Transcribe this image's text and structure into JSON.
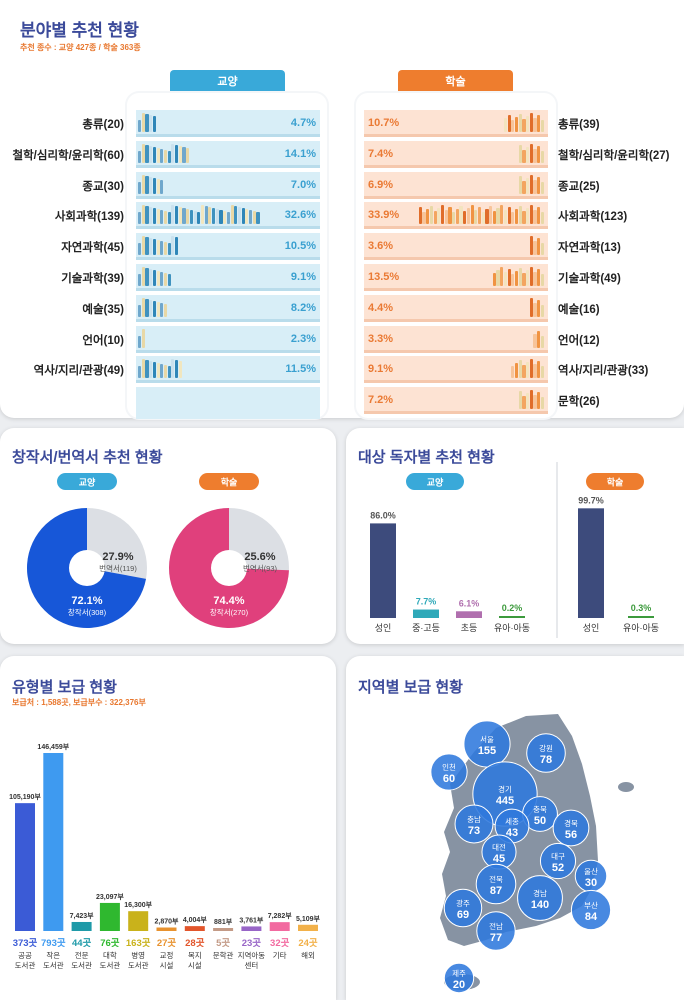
{
  "section1": {
    "title": "분야별 추천 현황",
    "subtitle": "추천 종수 : 교양 427종 / 학술 363종",
    "left_tab": "교양",
    "right_tab": "학술",
    "left_color": "#39a9d9",
    "right_color": "#ee7d2e",
    "left_rows": [
      {
        "label": "총류(20)",
        "pct": "4.7%",
        "value": 4.7
      },
      {
        "label": "철학/심리학/윤리학(60)",
        "pct": "14.1%",
        "value": 14.1
      },
      {
        "label": "종교(30)",
        "pct": "7.0%",
        "value": 7.0
      },
      {
        "label": "사회과학(139)",
        "pct": "32.6%",
        "value": 32.6
      },
      {
        "label": "자연과학(45)",
        "pct": "10.5%",
        "value": 10.5
      },
      {
        "label": "기술과학(39)",
        "pct": "9.1%",
        "value": 9.1
      },
      {
        "label": "예술(35)",
        "pct": "8.2%",
        "value": 8.2
      },
      {
        "label": "언어(10)",
        "pct": "2.3%",
        "value": 2.3
      },
      {
        "label": "역사/지리/관광(49)",
        "pct": "11.5%",
        "value": 11.5
      }
    ],
    "right_rows": [
      {
        "label": "총류(39)",
        "pct": "10.7%",
        "value": 10.7
      },
      {
        "label": "철학/심리학/윤리학(27)",
        "pct": "7.4%",
        "value": 7.4
      },
      {
        "label": "종교(25)",
        "pct": "6.9%",
        "value": 6.9
      },
      {
        "label": "사회과학(123)",
        "pct": "33.9%",
        "value": 33.9
      },
      {
        "label": "자연과학(13)",
        "pct": "3.6%",
        "value": 3.6
      },
      {
        "label": "기술과학(49)",
        "pct": "13.5%",
        "value": 13.5
      },
      {
        "label": "예술(16)",
        "pct": "4.4%",
        "value": 4.4
      },
      {
        "label": "언어(12)",
        "pct": "3.3%",
        "value": 3.3
      },
      {
        "label": "역사/지리/관광(33)",
        "pct": "9.1%",
        "value": 9.1
      },
      {
        "label": "문학(26)",
        "pct": "7.2%",
        "value": 7.2
      }
    ]
  },
  "section2": {
    "title": "창작서/번역서 추천 현황",
    "pies": [
      {
        "tag": "교양",
        "tag_color": "#39a9d9",
        "main_color": "#1757d8",
        "main_pct": "72.1%",
        "main_label": "창작서(308)",
        "main_value": 72.1,
        "rest_pct": "27.9%",
        "rest_label": "번역서(119)"
      },
      {
        "tag": "학술",
        "tag_color": "#ee7d2e",
        "main_color": "#e0407c",
        "main_pct": "74.4%",
        "main_label": "창작서(270)",
        "main_value": 74.4,
        "rest_pct": "25.6%",
        "rest_label": "번역서(93)"
      }
    ]
  },
  "section3": {
    "title": "대상 독자별 추천 현황",
    "left_tag": "교양",
    "right_tag": "학술",
    "left_bars": [
      {
        "name": "성인",
        "label": "86.0%",
        "value": 86.0,
        "color": "#3d4b7c",
        "label_color": "#555555"
      },
      {
        "name": "중·고등",
        "label": "7.7%",
        "value": 7.7,
        "color": "#2fa9b9",
        "label_color": "#2fa9b9"
      },
      {
        "name": "초등",
        "label": "6.1%",
        "value": 6.1,
        "color": "#b06fae",
        "label_color": "#b06fae"
      },
      {
        "name": "유아·아동",
        "label": "0.2%",
        "value": 0.2,
        "color": "#3c9a3c",
        "label_color": "#3c9a3c"
      }
    ],
    "right_bars": [
      {
        "name": "성인",
        "label": "99.7%",
        "value": 99.7,
        "color": "#3d4b7c",
        "label_color": "#555555"
      },
      {
        "name": "유아·아동",
        "label": "0.3%",
        "value": 0.3,
        "color": "#3c9a3c",
        "label_color": "#3c9a3c"
      }
    ]
  },
  "section4": {
    "title": "유형별 보급 현황",
    "subtitle": "보급처 : 1,588곳, 보급부수 : 322,376부",
    "bars": [
      {
        "value_label": "105,190부",
        "value": 105190,
        "count": "373곳",
        "name": "공공\n도서관",
        "color": "#3b5bd6"
      },
      {
        "value_label": "146,459부",
        "value": 146459,
        "count": "793곳",
        "name": "작은\n도서관",
        "color": "#3e9af0"
      },
      {
        "value_label": "7,423부",
        "value": 7423,
        "count": "44곳",
        "name": "전문\n도서관",
        "color": "#1e9aa8"
      },
      {
        "value_label": "23,097부",
        "value": 23097,
        "count": "76곳",
        "name": "대학\n도서관",
        "color": "#2fb82f"
      },
      {
        "value_label": "16,300부",
        "value": 16300,
        "count": "163곳",
        "name": "병영\n도서관",
        "color": "#c9b21b"
      },
      {
        "value_label": "2,870부",
        "value": 2870,
        "count": "27곳",
        "name": "교정\n시설",
        "color": "#e8922e"
      },
      {
        "value_label": "4,004부",
        "value": 4004,
        "count": "28곳",
        "name": "복지\n시설",
        "color": "#e2552b"
      },
      {
        "value_label": "881부",
        "value": 881,
        "count": "5곳",
        "name": "문학관",
        "color": "#c39a86"
      },
      {
        "value_label": "3,761부",
        "value": 3761,
        "count": "23곳",
        "name": "지역아동\n센터",
        "color": "#9865c7"
      },
      {
        "value_label": "7,282부",
        "value": 7282,
        "count": "32곳",
        "name": "기타",
        "color": "#f26aa0"
      },
      {
        "value_label": "5,109부",
        "value": 5109,
        "count": "24곳",
        "name": "해외",
        "color": "#f2b14a"
      }
    ]
  },
  "section5": {
    "title": "지역별 보급 현황",
    "regions": [
      {
        "name": "서울",
        "value": "155",
        "n": 155
      },
      {
        "name": "강원",
        "value": "78",
        "n": 78
      },
      {
        "name": "인천",
        "value": "60",
        "n": 60
      },
      {
        "name": "경기",
        "value": "445",
        "n": 445
      },
      {
        "name": "충북",
        "value": "50",
        "n": 50
      },
      {
        "name": "충남",
        "value": "73",
        "n": 73
      },
      {
        "name": "세종",
        "value": "43",
        "n": 43
      },
      {
        "name": "경북",
        "value": "56",
        "n": 56
      },
      {
        "name": "대전",
        "value": "45",
        "n": 45
      },
      {
        "name": "대구",
        "value": "52",
        "n": 52
      },
      {
        "name": "전북",
        "value": "87",
        "n": 87
      },
      {
        "name": "울산",
        "value": "30",
        "n": 30
      },
      {
        "name": "경남",
        "value": "140",
        "n": 140
      },
      {
        "name": "광주",
        "value": "69",
        "n": 69
      },
      {
        "name": "부산",
        "value": "84",
        "n": 84
      },
      {
        "name": "전남",
        "value": "77",
        "n": 77
      },
      {
        "name": "제주",
        "value": "20",
        "n": 20
      }
    ]
  },
  "chart_data": [
    {
      "type": "bar",
      "title": "분야별 추천 현황 - 교양",
      "categories": [
        "총류",
        "철학/심리학/윤리학",
        "종교",
        "사회과학",
        "자연과학",
        "기술과학",
        "예술",
        "언어",
        "역사/지리/관광"
      ],
      "counts": [
        20,
        60,
        30,
        139,
        45,
        39,
        35,
        10,
        49
      ],
      "values": [
        4.7,
        14.1,
        7.0,
        32.6,
        10.5,
        9.1,
        8.2,
        2.3,
        11.5
      ]
    },
    {
      "type": "bar",
      "title": "분야별 추천 현황 - 학술",
      "categories": [
        "총류",
        "철학/심리학/윤리학",
        "종교",
        "사회과학",
        "자연과학",
        "기술과학",
        "예술",
        "언어",
        "역사/지리/관광",
        "문학"
      ],
      "counts": [
        39,
        27,
        25,
        123,
        13,
        49,
        16,
        12,
        33,
        26
      ],
      "values": [
        10.7,
        7.4,
        6.9,
        33.9,
        3.6,
        13.5,
        4.4,
        3.3,
        9.1,
        7.2
      ]
    },
    {
      "type": "pie",
      "title": "창작서/번역서 추천 현황 - 교양",
      "categories": [
        "창작서",
        "번역서"
      ],
      "counts": [
        308,
        119
      ],
      "values": [
        72.1,
        27.9
      ]
    },
    {
      "type": "pie",
      "title": "창작서/번역서 추천 현황 - 학술",
      "categories": [
        "창작서",
        "번역서"
      ],
      "counts": [
        270,
        93
      ],
      "values": [
        74.4,
        25.6
      ]
    },
    {
      "type": "bar",
      "title": "대상 독자별 추천 현황 - 교양",
      "categories": [
        "성인",
        "중·고등",
        "초등",
        "유아·아동"
      ],
      "values": [
        86.0,
        7.7,
        6.1,
        0.2
      ]
    },
    {
      "type": "bar",
      "title": "대상 독자별 추천 현황 - 학술",
      "categories": [
        "성인",
        "유아·아동"
      ],
      "values": [
        99.7,
        0.3
      ]
    },
    {
      "type": "bar",
      "title": "유형별 보급 현황",
      "categories": [
        "공공도서관",
        "작은도서관",
        "전문도서관",
        "대학도서관",
        "병영도서관",
        "교정시설",
        "복지시설",
        "문학관",
        "지역아동센터",
        "기타",
        "해외"
      ],
      "series": [
        {
          "name": "보급부수",
          "values": [
            105190,
            146459,
            7423,
            23097,
            16300,
            2870,
            4004,
            881,
            3761,
            7282,
            5109
          ]
        },
        {
          "name": "보급처",
          "values": [
            373,
            793,
            44,
            76,
            163,
            27,
            28,
            5,
            23,
            32,
            24
          ]
        }
      ]
    },
    {
      "type": "bar",
      "title": "지역별 보급 현황",
      "categories": [
        "서울",
        "강원",
        "인천",
        "경기",
        "충북",
        "충남",
        "세종",
        "경북",
        "대전",
        "대구",
        "전북",
        "울산",
        "경남",
        "광주",
        "부산",
        "전남",
        "제주"
      ],
      "values": [
        155,
        78,
        60,
        445,
        50,
        73,
        43,
        56,
        45,
        52,
        87,
        30,
        140,
        69,
        84,
        77,
        20
      ]
    }
  ]
}
